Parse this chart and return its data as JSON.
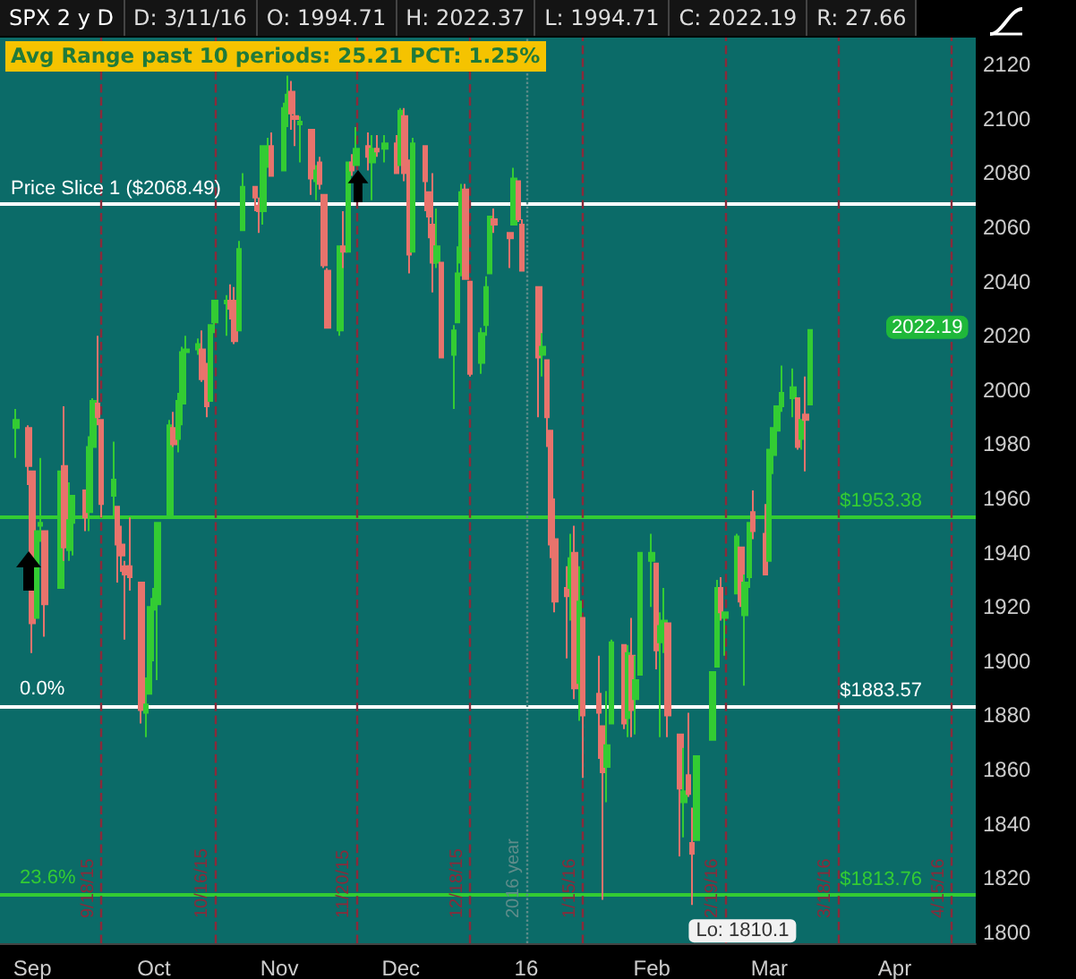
{
  "chart_data": {
    "type": "candlestick",
    "title": "SPX 2 y D",
    "x": [
      "2015-08-28",
      "2015-08-31",
      "2015-09-01",
      "2015-09-02",
      "2015-09-03",
      "2015-09-04",
      "2015-09-08",
      "2015-09-09",
      "2015-09-10",
      "2015-09-11",
      "2015-09-14",
      "2015-09-15",
      "2015-09-16",
      "2015-09-17",
      "2015-09-18",
      "2015-09-21",
      "2015-09-22",
      "2015-09-23",
      "2015-09-24",
      "2015-09-25",
      "2015-09-28",
      "2015-09-29",
      "2015-09-30",
      "2015-10-01",
      "2015-10-02",
      "2015-10-05",
      "2015-10-06",
      "2015-10-07",
      "2015-10-08",
      "2015-10-09",
      "2015-10-12",
      "2015-10-13",
      "2015-10-14",
      "2015-10-15",
      "2015-10-16",
      "2015-10-19",
      "2015-10-20",
      "2015-10-21",
      "2015-10-22",
      "2015-10-23",
      "2015-10-26",
      "2015-10-27",
      "2015-10-28",
      "2015-10-29",
      "2015-10-30",
      "2015-11-02",
      "2015-11-03",
      "2015-11-04",
      "2015-11-05",
      "2015-11-06",
      "2015-11-09",
      "2015-11-10",
      "2015-11-11",
      "2015-11-12",
      "2015-11-13",
      "2015-11-16",
      "2015-11-17",
      "2015-11-18",
      "2015-11-19",
      "2015-11-20",
      "2015-11-23",
      "2015-11-24",
      "2015-11-25",
      "2015-11-27",
      "2015-11-30",
      "2015-12-01",
      "2015-12-02",
      "2015-12-03",
      "2015-12-04",
      "2015-12-07",
      "2015-12-08",
      "2015-12-09",
      "2015-12-10",
      "2015-12-11",
      "2015-12-14",
      "2015-12-15",
      "2015-12-16",
      "2015-12-17",
      "2015-12-18",
      "2015-12-21",
      "2015-12-22",
      "2015-12-23",
      "2015-12-24",
      "2015-12-28",
      "2015-12-29",
      "2015-12-30",
      "2015-12-31",
      "2016-01-04",
      "2016-01-05",
      "2016-01-06",
      "2016-01-07",
      "2016-01-08",
      "2016-01-11",
      "2016-01-12",
      "2016-01-13",
      "2016-01-14",
      "2016-01-15",
      "2016-01-19",
      "2016-01-20",
      "2016-01-21",
      "2016-01-22",
      "2016-01-25",
      "2016-01-26",
      "2016-01-27",
      "2016-01-28",
      "2016-01-29",
      "2016-02-01",
      "2016-02-02",
      "2016-02-03",
      "2016-02-04",
      "2016-02-05",
      "2016-02-08",
      "2016-02-09",
      "2016-02-10",
      "2016-02-11",
      "2016-02-12",
      "2016-02-16",
      "2016-02-17",
      "2016-02-18",
      "2016-02-19",
      "2016-02-22",
      "2016-02-23",
      "2016-02-24",
      "2016-02-25",
      "2016-02-26",
      "2016-02-29",
      "2016-03-01",
      "2016-03-02",
      "2016-03-03",
      "2016-03-04",
      "2016-03-07",
      "2016-03-08",
      "2016-03-09",
      "2016-03-10",
      "2016-03-11"
    ],
    "ohlc": [
      [
        1986,
        1993,
        1975,
        1989
      ],
      [
        1986,
        1987,
        1965,
        1972
      ],
      [
        1970,
        1970,
        1903,
        1914
      ],
      [
        1916,
        1948,
        1916,
        1948
      ],
      [
        1950,
        1975,
        1944,
        1951
      ],
      [
        1948,
        1948,
        1909,
        1921
      ],
      [
        1927,
        1970,
        1927,
        1970
      ],
      [
        1972,
        1994,
        1937,
        1942
      ],
      [
        1941,
        1966,
        1937,
        1952
      ],
      [
        1951,
        1961,
        1939,
        1961
      ],
      [
        1963,
        1963,
        1948,
        1953
      ],
      [
        1955,
        1983,
        1948,
        1979
      ],
      [
        1979,
        1997,
        1977,
        1996
      ],
      [
        1995,
        2020,
        1987,
        1990
      ],
      [
        1989,
        1989,
        1953,
        1958
      ],
      [
        1961,
        1981,
        1953,
        1967
      ],
      [
        1957,
        1957,
        1929,
        1943
      ],
      [
        1943,
        1950,
        1933,
        1939
      ],
      [
        1935,
        1937,
        1908,
        1932
      ],
      [
        1935,
        1953,
        1926,
        1931
      ],
      [
        1929,
        1929,
        1877,
        1882
      ],
      [
        1881,
        1894,
        1872,
        1884
      ],
      [
        1888,
        1920,
        1888,
        1920
      ],
      [
        1919,
        1927,
        1900,
        1923
      ],
      [
        1921,
        1951,
        1893,
        1951
      ],
      [
        1954,
        1989,
        1954,
        1987
      ],
      [
        1986,
        1992,
        1979,
        1980
      ],
      [
        1982,
        1999,
        1977,
        1996
      ],
      [
        1995,
        2016,
        1987,
        2014
      ],
      [
        2014,
        2020,
        2008,
        2015
      ],
      [
        2015,
        2019,
        2013,
        2017
      ],
      [
        2015,
        2022,
        2003,
        2004
      ],
      [
        2004,
        2010,
        1990,
        1994
      ],
      [
        1996,
        2024,
        1996,
        2024
      ],
      [
        2025,
        2033,
        2021,
        2033
      ],
      [
        2032,
        2035,
        2020,
        2033
      ],
      [
        2033,
        2039,
        2026,
        2030
      ],
      [
        2033,
        2038,
        2017,
        2018
      ],
      [
        2022,
        2055,
        2022,
        2052
      ],
      [
        2059,
        2080,
        2059,
        2075
      ],
      [
        2075,
        2075,
        2066,
        2071
      ],
      [
        2068,
        2071,
        2058,
        2066
      ],
      [
        2066,
        2090,
        2061,
        2090
      ],
      [
        2088,
        2093,
        2082,
        2089
      ],
      [
        2090,
        2095,
        2079,
        2079
      ],
      [
        2081,
        2106,
        2081,
        2104
      ],
      [
        2102,
        2116,
        2097,
        2109
      ],
      [
        2110,
        2114,
        2096,
        2102
      ],
      [
        2101,
        2108,
        2090,
        2100
      ],
      [
        2098,
        2101,
        2084,
        2099
      ],
      [
        2096,
        2096,
        2072,
        2078
      ],
      [
        2077,
        2083,
        2070,
        2081
      ],
      [
        2084,
        2086,
        2074,
        2076
      ],
      [
        2072,
        2072,
        2045,
        2046
      ],
      [
        2044,
        2045,
        2023,
        2023
      ],
      [
        2022,
        2053,
        2020,
        2053
      ],
      [
        2053,
        2066,
        2045,
        2051
      ],
      [
        2051,
        2084,
        2051,
        2084
      ],
      [
        2084,
        2087,
        2079,
        2081
      ],
      [
        2083,
        2097,
        2083,
        2089
      ],
      [
        2090,
        2095,
        2081,
        2086
      ],
      [
        2084,
        2094,
        2070,
        2089
      ],
      [
        2089,
        2094,
        2086,
        2088
      ],
      [
        2089,
        2094,
        2084,
        2091
      ],
      [
        2091,
        2094,
        2080,
        2080
      ],
      [
        2083,
        2104,
        2083,
        2103
      ],
      [
        2101,
        2104,
        2077,
        2080
      ],
      [
        2082,
        2085,
        2043,
        2050
      ],
      [
        2051,
        2093,
        2051,
        2091
      ],
      [
        2090,
        2090,
        2066,
        2077
      ],
      [
        2073,
        2073,
        2056,
        2064
      ],
      [
        2061,
        2080,
        2036,
        2047
      ],
      [
        2047,
        2067,
        2045,
        2053
      ],
      [
        2047,
        2047,
        2012,
        2012
      ],
      [
        2013,
        2024,
        1993,
        2022
      ],
      [
        2025,
        2053,
        2025,
        2043
      ],
      [
        2047,
        2076,
        2042,
        2073
      ],
      [
        2074,
        2076,
        2041,
        2041
      ],
      [
        2040,
        2040,
        2005,
        2006
      ],
      [
        2010,
        2023,
        2006,
        2021
      ],
      [
        2024,
        2042,
        2020,
        2038
      ],
      [
        2043,
        2064,
        2043,
        2064
      ],
      [
        2063,
        2067,
        2058,
        2061
      ],
      [
        2058,
        2058,
        2045,
        2056
      ],
      [
        2061,
        2082,
        2061,
        2078
      ],
      [
        2077,
        2077,
        2062,
        2063
      ],
      [
        2061,
        2063,
        2044,
        2044
      ],
      [
        2038,
        2038,
        1990,
        2012
      ],
      [
        2013,
        2021,
        2005,
        2016
      ],
      [
        2011,
        2011,
        1979,
        1990
      ],
      [
        1985,
        1985,
        1938,
        1943
      ],
      [
        1945,
        1960,
        1918,
        1922
      ],
      [
        1927,
        1935,
        1901,
        1924
      ],
      [
        1927,
        1947,
        1915,
        1938
      ],
      [
        1940,
        1950,
        1886,
        1890
      ],
      [
        1892,
        1935,
        1878,
        1922
      ],
      [
        1916,
        1916,
        1857,
        1880
      ],
      [
        1888,
        1902,
        1864,
        1881
      ],
      [
        1876,
        1876,
        1812,
        1859
      ],
      [
        1861,
        1889,
        1848,
        1869
      ],
      [
        1877,
        1908,
        1877,
        1907
      ],
      [
        1906,
        1906,
        1875,
        1877
      ],
      [
        1879,
        1906,
        1872,
        1903
      ],
      [
        1902,
        1916,
        1872,
        1882
      ],
      [
        1886,
        1902,
        1873,
        1893
      ],
      [
        1895,
        1940,
        1895,
        1940
      ],
      [
        1937,
        1947,
        1920,
        1940
      ],
      [
        1936,
        1936,
        1897,
        1904
      ],
      [
        1907,
        1918,
        1872,
        1913
      ],
      [
        1912,
        1927,
        1903,
        1915
      ],
      [
        1914,
        1914,
        1872,
        1880
      ],
      [
        1873,
        1873,
        1828,
        1853
      ],
      [
        1848,
        1868,
        1835,
        1852
      ],
      [
        1858,
        1881,
        1850,
        1851
      ],
      [
        1833,
        1846,
        1810.1,
        1829
      ],
      [
        1834,
        1865,
        1834,
        1865
      ],
      [
        1871,
        1896,
        1871,
        1896
      ],
      [
        1898,
        1930,
        1898,
        1927
      ],
      [
        1927,
        1931,
        1915,
        1918
      ],
      [
        1916,
        1918,
        1902,
        1918
      ],
      [
        1925,
        1947,
        1925,
        1946
      ],
      [
        1942,
        1942,
        1920,
        1922
      ],
      [
        1917,
        1932,
        1891,
        1929
      ],
      [
        1931,
        1951,
        1927,
        1951
      ],
      [
        1955,
        1963,
        1945,
        1948
      ],
      [
        1947,
        1958,
        1932,
        1932
      ],
      [
        1937,
        1978,
        1937,
        1978
      ],
      [
        1976,
        1986,
        1969,
        1986
      ],
      [
        1985,
        1994,
        1981,
        1994
      ],
      [
        1994,
        2009,
        1992,
        1999
      ],
      [
        1997,
        2008,
        1990,
        2001
      ],
      [
        1997,
        1997,
        1978,
        1979
      ],
      [
        1982,
        1989,
        1978,
        1989
      ],
      [
        1991,
        2005,
        1970,
        1989
      ],
      [
        1994.71,
        2022.37,
        1994.71,
        2022.19
      ]
    ],
    "colors": [
      "#33cc33",
      "#e8736c",
      "#e8736c",
      "#33cc33",
      "#33cc33",
      "#e8736c",
      "#33cc33",
      "#e8736c",
      "#33cc33",
      "#33cc33",
      "#e8736c",
      "#33cc33",
      "#33cc33",
      "#e8736c",
      "#e8736c",
      "#33cc33",
      "#e8736c",
      "#e8736c",
      "#e8736c",
      "#e8736c",
      "#e8736c",
      "#33cc33",
      "#33cc33",
      "#33cc33",
      "#33cc33",
      "#33cc33",
      "#e8736c",
      "#33cc33",
      "#33cc33",
      "#33cc33",
      "#33cc33",
      "#e8736c",
      "#e8736c",
      "#33cc33",
      "#33cc33",
      "#33cc33",
      "#e8736c",
      "#e8736c",
      "#33cc33",
      "#33cc33",
      "#e8736c",
      "#e8736c",
      "#33cc33",
      "#33cc33",
      "#e8736c",
      "#33cc33",
      "#33cc33",
      "#e8736c",
      "#e8736c",
      "#33cc33",
      "#e8736c",
      "#33cc33",
      "#e8736c",
      "#e8736c",
      "#e8736c",
      "#33cc33",
      "#e8736c",
      "#33cc33",
      "#e8736c",
      "#33cc33",
      "#e8736c",
      "#33cc33",
      "#e8736c",
      "#33cc33",
      "#e8736c",
      "#33cc33",
      "#e8736c",
      "#e8736c",
      "#33cc33",
      "#e8736c",
      "#e8736c",
      "#e8736c",
      "#33cc33",
      "#e8736c",
      "#33cc33",
      "#33cc33",
      "#33cc33",
      "#e8736c",
      "#e8736c",
      "#33cc33",
      "#33cc33",
      "#33cc33",
      "#e8736c",
      "#e8736c",
      "#33cc33",
      "#e8736c",
      "#e8736c",
      "#e8736c",
      "#33cc33",
      "#e8736c",
      "#e8736c",
      "#e8736c",
      "#e8736c",
      "#33cc33",
      "#e8736c",
      "#33cc33",
      "#e8736c",
      "#e8736c",
      "#e8736c",
      "#33cc33",
      "#33cc33",
      "#e8736c",
      "#33cc33",
      "#e8736c",
      "#33cc33",
      "#33cc33",
      "#33cc33",
      "#e8736c",
      "#33cc33",
      "#33cc33",
      "#e8736c",
      "#e8736c",
      "#33cc33",
      "#e8736c",
      "#e8736c",
      "#33cc33",
      "#33cc33",
      "#33cc33",
      "#e8736c",
      "#33cc33",
      "#33cc33",
      "#e8736c",
      "#33cc33",
      "#33cc33",
      "#e8736c",
      "#e8736c",
      "#33cc33",
      "#33cc33",
      "#33cc33",
      "#33cc33",
      "#33cc33",
      "#e8736c",
      "#33cc33",
      "#e8736c",
      "#33cc33"
    ],
    "xlim": [
      "2015-08-24",
      "2016-04-21"
    ],
    "xticks": [
      {
        "value": "2015-09-01",
        "label": "Sep"
      },
      {
        "value": "2015-10-01",
        "label": "Oct"
      },
      {
        "value": "2015-11-01",
        "label": "Nov"
      },
      {
        "value": "2015-12-01",
        "label": "Dec"
      },
      {
        "value": "2016-01-01",
        "label": "16"
      },
      {
        "value": "2016-02-01",
        "label": "Feb"
      },
      {
        "value": "2016-03-01",
        "label": "Mar"
      },
      {
        "value": "2016-04-01",
        "label": "Apr"
      }
    ],
    "ylim": [
      1796,
      2130
    ],
    "yticks": [
      1800,
      1820,
      1840,
      1860,
      1880,
      1900,
      1920,
      1940,
      1960,
      1980,
      2000,
      2020,
      2040,
      2060,
      2080,
      2100,
      2120
    ],
    "grid": false,
    "ref_lines": [
      {
        "axis": "y",
        "value": 2068.49,
        "label": "Price Slice 1 ($2068.49)",
        "color": "#ffffff"
      },
      {
        "axis": "y",
        "value": 1883.57,
        "label": "$1883.57",
        "color": "#ffffff"
      },
      {
        "axis": "y",
        "value": 1953.38,
        "label": "$1953.38",
        "color": "#33cc33"
      },
      {
        "axis": "y",
        "value": 1813.76,
        "label": "$1813.76",
        "color": "#33cc33"
      },
      {
        "axis": "x",
        "value": "2015-09-18",
        "label": "9/18/15",
        "color": "#8a2a3a",
        "line_style": "dashed"
      },
      {
        "axis": "x",
        "value": "2015-10-16",
        "label": "10/16/15",
        "color": "#8a2a3a",
        "line_style": "dashed"
      },
      {
        "axis": "x",
        "value": "2015-11-20",
        "label": "11/20/15",
        "color": "#8a2a3a",
        "line_style": "dashed"
      },
      {
        "axis": "x",
        "value": "2015-12-18",
        "label": "12/18/15",
        "color": "#8a2a3a",
        "line_style": "dashed"
      },
      {
        "axis": "x",
        "value": "2016-01-01",
        "label": "2016 year",
        "color": "#5f8c8a",
        "line_style": "dotted"
      },
      {
        "axis": "x",
        "value": "2016-01-15",
        "label": "1/15/16",
        "color": "#8a2a3a",
        "line_style": "dashed"
      },
      {
        "axis": "x",
        "value": "2016-02-19",
        "label": "2/19/16",
        "color": "#8a2a3a",
        "line_style": "dashed"
      },
      {
        "axis": "x",
        "value": "2016-03-18",
        "label": "3/18/16",
        "color": "#8a2a3a",
        "line_style": "dashed"
      },
      {
        "axis": "x",
        "value": "2016-04-15",
        "label": "4/15/16",
        "color": "#8a2a3a",
        "line_style": "dashed"
      }
    ],
    "annotations": [
      "D: 3/11/16",
      "O: 1994.71",
      "H: 2022.37",
      "L: 1994.71",
      "C: 2022.19",
      "R: 27.66",
      "Avg Range past 10 periods: 25.21 PCT: 1.25%",
      {
        "text": "0.0%",
        "x": "2015-08-28",
        "y": 1883.57
      },
      {
        "text": "23.6%",
        "x": "2015-08-28",
        "y": 1813.76
      },
      {
        "text": "Lo: 1810.1",
        "x": "2016-02-11",
        "y": 1810.1
      },
      "2022.19"
    ]
  }
}
